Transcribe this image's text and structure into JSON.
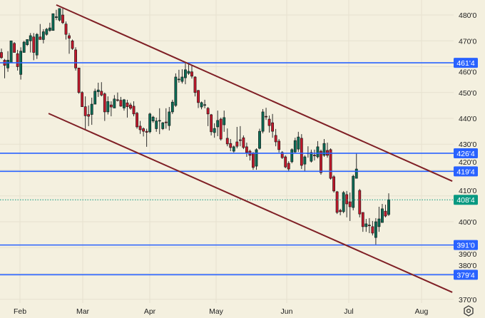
{
  "chart_data": {
    "type": "candlestick",
    "title": "",
    "xlabel": "",
    "ylabel": "",
    "ylim": [
      367,
      485
    ],
    "grid": true,
    "y_ticks": [
      480,
      470,
      460,
      450,
      440,
      430,
      420,
      410,
      400,
      390,
      380,
      370
    ],
    "y_tick_labels": [
      "480'0",
      "470'0",
      "460'0",
      "450'0",
      "440'0",
      "430'0",
      "420'0",
      "410'0",
      "400'0",
      "390'0",
      "380'0",
      "370'0"
    ],
    "x_tick_labels": [
      "Feb",
      "Mar",
      "Apr",
      "May",
      "Jun",
      "Jul",
      "Aug"
    ],
    "candles_ohlc": [
      [
        465.5,
        467,
        463,
        463.5
      ],
      [
        462.5,
        463,
        455.5,
        460.5
      ],
      [
        459.5,
        466,
        458,
        462.5
      ],
      [
        461.5,
        470,
        461.5,
        470
      ],
      [
        469,
        469.5,
        465.5,
        465.5
      ],
      [
        465,
        466.5,
        458.5,
        460
      ],
      [
        457,
        467.5,
        455,
        466
      ],
      [
        465.5,
        470,
        465.5,
        469.5
      ],
      [
        468.5,
        470.5,
        468,
        470.5
      ],
      [
        470,
        473,
        465.5,
        472
      ],
      [
        471.5,
        473,
        462.5,
        465.5
      ],
      [
        464.5,
        473,
        463,
        472.5
      ],
      [
        471.5,
        476.5,
        470.5,
        470.5
      ],
      [
        470.5,
        474.5,
        469,
        473.5
      ],
      [
        472.5,
        475,
        472,
        474.5
      ],
      [
        474,
        477,
        473.5,
        475
      ],
      [
        474,
        480.5,
        474,
        480.5
      ],
      [
        479,
        482,
        478,
        479.3
      ],
      [
        478,
        482.5,
        477.5,
        482.5
      ],
      [
        480,
        482.5,
        476.5,
        477
      ],
      [
        476.5,
        477.5,
        470.5,
        472.5
      ],
      [
        472,
        473,
        465,
        471
      ],
      [
        470,
        470.5,
        466.5,
        467
      ],
      [
        466.5,
        467.5,
        458.5,
        459.5
      ],
      [
        459.5,
        459.5,
        449.5,
        450
      ],
      [
        450,
        450.5,
        444.5,
        444.5
      ],
      [
        444.5,
        448.5,
        435.5,
        441
      ],
      [
        441.5,
        445,
        437,
        440.8
      ],
      [
        441.5,
        448,
        437.5,
        445.5
      ],
      [
        445.5,
        451.5,
        445.5,
        450.5
      ],
      [
        450.3,
        453.8,
        448.3,
        451
      ],
      [
        450.5,
        454,
        448.5,
        449
      ],
      [
        449.5,
        450,
        439,
        442.5
      ],
      [
        442.5,
        448.5,
        441.5,
        446.5
      ],
      [
        445.2,
        446.6,
        440.8,
        444.4
      ],
      [
        444,
        449,
        444,
        447.5
      ],
      [
        447.2,
        450,
        446.5,
        447
      ],
      [
        447,
        448.3,
        444.5,
        444.7
      ],
      [
        444,
        447.5,
        443,
        447.2
      ],
      [
        446,
        447.2,
        440.3,
        444.5
      ],
      [
        445.2,
        446,
        443.3,
        443.9
      ],
      [
        444.7,
        446.6,
        440.8,
        441.7
      ],
      [
        442,
        442.5,
        436,
        436.7
      ],
      [
        437,
        439,
        434,
        435.6
      ],
      [
        436,
        436.5,
        433,
        435
      ],
      [
        435,
        436,
        429,
        434.6
      ],
      [
        434.8,
        442.2,
        434.2,
        441.7
      ],
      [
        439,
        441,
        438.3,
        440.5
      ],
      [
        436,
        440.3,
        434.8,
        439
      ],
      [
        439,
        443.9,
        433.9,
        439.2
      ],
      [
        436,
        438.6,
        435.5,
        438.3
      ],
      [
        438.6,
        443.9,
        436,
        438.3
      ],
      [
        437.2,
        444.4,
        435.3,
        442.5
      ],
      [
        442.5,
        447.2,
        441.7,
        446.3
      ],
      [
        445,
        457.4,
        444.4,
        456
      ],
      [
        455,
        458.8,
        453.8,
        455.2
      ],
      [
        454.3,
        459,
        453.5,
        456
      ],
      [
        455.7,
        461.5,
        453.2,
        458.8
      ],
      [
        457.4,
        461,
        456.8,
        458.2
      ],
      [
        458,
        460.4,
        455.4,
        456.3
      ],
      [
        456,
        456.3,
        448.5,
        450
      ],
      [
        450.8,
        451,
        444,
        446.1
      ],
      [
        444.4,
        446.5,
        443.5,
        446.1
      ],
      [
        445.2,
        447.2,
        443.9,
        445.3
      ],
      [
        443.9,
        444.4,
        437,
        441.7
      ],
      [
        441.4,
        441.7,
        433.4,
        434.8
      ],
      [
        434.5,
        438.1,
        432.5,
        436.1
      ],
      [
        436.7,
        443,
        433.1,
        439.2
      ],
      [
        439.7,
        440.3,
        431.4,
        432
      ],
      [
        437.5,
        443,
        434.8,
        440.3
      ],
      [
        432.3,
        436.1,
        429.2,
        430.1
      ],
      [
        430.3,
        432,
        427.3,
        428.7
      ],
      [
        427.3,
        429.5,
        426.8,
        429
      ],
      [
        430.9,
        436.7,
        428.4,
        429.2
      ],
      [
        431.7,
        437,
        429.2,
        431.5
      ],
      [
        432.5,
        433.4,
        428.1,
        428.7
      ],
      [
        429,
        430.6,
        425.1,
        426.8
      ],
      [
        427.3,
        427.9,
        423.7,
        425.7
      ],
      [
        426.5,
        427,
        420.1,
        421
      ],
      [
        421.5,
        428.4,
        420.1,
        427.9
      ],
      [
        428.4,
        436,
        428,
        435
      ],
      [
        435,
        443.6,
        434.2,
        442.5
      ],
      [
        440.8,
        444.1,
        439.4,
        440.6
      ],
      [
        439.7,
        441.1,
        434.5,
        437.2
      ],
      [
        438.3,
        441.7,
        432.5,
        435
      ],
      [
        433.4,
        435.9,
        429.2,
        430.9
      ],
      [
        431.2,
        432,
        426.8,
        427.9
      ],
      [
        426.8,
        427.3,
        424.3,
        424.8
      ],
      [
        425.1,
        425.7,
        420.7,
        421.2
      ],
      [
        422.6,
        423.4,
        419.6,
        420.4
      ],
      [
        423.2,
        428.4,
        422.6,
        427.9
      ],
      [
        427,
        432.5,
        426.5,
        431.4
      ],
      [
        428.1,
        434.8,
        427,
        432.8
      ],
      [
        432.3,
        433.9,
        420.4,
        421.8
      ],
      [
        422.3,
        425.7,
        419.6,
        425.1
      ],
      [
        426.5,
        429.2,
        424.8,
        426.6
      ],
      [
        423.4,
        427.9,
        422.9,
        426.8
      ],
      [
        425.8,
        427.9,
        423.7,
        425.5
      ],
      [
        425.1,
        431.2,
        424.5,
        429
      ],
      [
        427.3,
        427.9,
        418.2,
        419
      ],
      [
        425.7,
        432,
        425.1,
        430.3
      ],
      [
        427.6,
        430.6,
        424.8,
        425.7
      ],
      [
        427.9,
        428.4,
        416.3,
        416.8
      ],
      [
        417.4,
        418,
        411.3,
        411.9
      ],
      [
        411.6,
        411.9,
        403,
        403.6
      ],
      [
        404.4,
        405,
        402.5,
        403.9
      ],
      [
        403.9,
        411.9,
        403.3,
        411.3
      ],
      [
        410.5,
        411.9,
        401.7,
        406.9
      ],
      [
        407.7,
        411.3,
        400.3,
        405.8
      ],
      [
        405.5,
        418.2,
        404.4,
        417.6
      ],
      [
        416.8,
        426.5,
        416.8,
        420.4
      ],
      [
        412.1,
        412.7,
        401.7,
        403
      ],
      [
        403.6,
        403.6,
        396.1,
        398.1
      ],
      [
        398.1,
        401.1,
        396.1,
        399.2
      ],
      [
        398.7,
        401.4,
        395.6,
        398.5
      ],
      [
        398.1,
        400.3,
        394.7,
        395.6
      ],
      [
        393.9,
        401.4,
        391.2,
        400
      ],
      [
        398.1,
        405.8,
        396.1,
        401.1
      ],
      [
        399.7,
        406.9,
        399.7,
        405
      ],
      [
        404.1,
        406.6,
        401.7,
        402.2
      ],
      [
        402.8,
        411,
        402.2,
        408.5
      ]
    ],
    "horizontal_levels": [
      {
        "value": 461.5,
        "label": "461'4"
      },
      {
        "value": 426.5,
        "label": "426'4"
      },
      {
        "value": 419.5,
        "label": "419'4"
      },
      {
        "value": 391.0,
        "label": "391'0"
      },
      {
        "value": 379.5,
        "label": "379'4"
      }
    ],
    "trend_lines": [
      {
        "name": "channel-upper",
        "from": {
          "bar": 17,
          "price": 483.9
        },
        "to": {
          "bar": 139.7,
          "price": 415.7
        }
      },
      {
        "name": "channel-lower",
        "from": {
          "bar": 14.6,
          "price": 441.9
        },
        "to": {
          "bar": 139.7,
          "price": 372.7
        }
      }
    ],
    "last_price": {
      "value": 408.5,
      "label": "408'4"
    },
    "colors": {
      "background": "#f4f0df",
      "up": "#0b6b55",
      "down": "#c3192c",
      "wick": "#2b2b2b",
      "level": "#2962ff",
      "trend": "#7f1f25",
      "last_price": "#089981",
      "grid": "#e6e1cf"
    }
  },
  "settings_icon": "gear-icon"
}
